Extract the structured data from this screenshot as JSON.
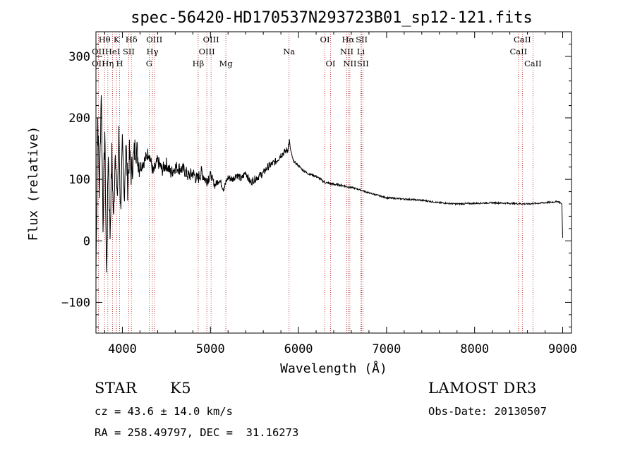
{
  "chart_data": {
    "type": "line",
    "title": "spec-56420-HD170537N293723B01_sp12-121.fits",
    "xlabel": "Wavelength (Å)",
    "ylabel": "Flux (relative)",
    "xlim": [
      3700,
      9100
    ],
    "ylim": [
      -150,
      340
    ],
    "xticks": [
      4000,
      5000,
      6000,
      7000,
      8000,
      9000
    ],
    "xtick_labels": [
      "4000",
      "5000",
      "6000",
      "7000",
      "8000",
      "9000"
    ],
    "yticks": [
      -100,
      0,
      100,
      200,
      300
    ],
    "ytick_labels": [
      "−100",
      "0",
      "100",
      "200",
      "300"
    ],
    "series": [
      {
        "name": "spectrum",
        "x": [
          3700,
          3720,
          3740,
          3760,
          3780,
          3800,
          3820,
          3840,
          3860,
          3880,
          3900,
          3920,
          3940,
          3960,
          3980,
          4000,
          4020,
          4040,
          4060,
          4080,
          4100,
          4150,
          4200,
          4250,
          4300,
          4350,
          4400,
          4450,
          4500,
          4550,
          4600,
          4650,
          4700,
          4750,
          4800,
          4850,
          4900,
          4950,
          5000,
          5050,
          5100,
          5150,
          5200,
          5250,
          5300,
          5350,
          5400,
          5450,
          5500,
          5550,
          5600,
          5650,
          5700,
          5750,
          5800,
          5850,
          5880,
          5895,
          5910,
          5940,
          5980,
          6050,
          6100,
          6200,
          6300,
          6400,
          6500,
          6560,
          6600,
          6700,
          6800,
          6900,
          7000,
          7200,
          7400,
          7600,
          7800,
          8000,
          8200,
          8400,
          8600,
          8800,
          8950,
          8990,
          9000
        ],
        "y": [
          -50,
          200,
          80,
          250,
          30,
          180,
          -60,
          150,
          10,
          140,
          30,
          160,
          60,
          170,
          50,
          150,
          70,
          160,
          90,
          140,
          110,
          155,
          120,
          130,
          145,
          110,
          130,
          115,
          125,
          110,
          120,
          118,
          115,
          105,
          110,
          100,
          112,
          98,
          108,
          90,
          100,
          85,
          103,
          100,
          108,
          100,
          112,
          95,
          100,
          105,
          110,
          120,
          125,
          130,
          140,
          145,
          150,
          162,
          148,
          130,
          125,
          115,
          110,
          105,
          95,
          92,
          90,
          88,
          87,
          83,
          78,
          74,
          70,
          68,
          66,
          62,
          60,
          61,
          62,
          61,
          60,
          62,
          64,
          60,
          5
        ]
      }
    ],
    "spectral_lines": [
      {
        "label": "Hθ",
        "wl": 3798,
        "row": 0
      },
      {
        "label": "K",
        "wl": 3934,
        "row": 0
      },
      {
        "label": "Hδ",
        "wl": 4102,
        "row": 0
      },
      {
        "label": "OIII",
        "wl": 4363,
        "row": 0
      },
      {
        "label": "OIII",
        "wl": 5007,
        "row": 0
      },
      {
        "label": "OI",
        "wl": 6300,
        "row": 0
      },
      {
        "label": "Hα",
        "wl": 6563,
        "row": 0
      },
      {
        "label": "SII",
        "wl": 6717,
        "row": 0
      },
      {
        "label": "CaII",
        "wl": 8542,
        "row": 0
      },
      {
        "label": "OII",
        "wl": 3727,
        "row": 1
      },
      {
        "label": "HeI",
        "wl": 3889,
        "row": 1
      },
      {
        "label": "SII",
        "wl": 4072,
        "row": 1
      },
      {
        "label": "Hγ",
        "wl": 4341,
        "row": 1
      },
      {
        "label": "OIII",
        "wl": 4959,
        "row": 1
      },
      {
        "label": "Na",
        "wl": 5893,
        "row": 1
      },
      {
        "label": "NII",
        "wl": 6548,
        "row": 1
      },
      {
        "label": "Li",
        "wl": 6708,
        "row": 1
      },
      {
        "label": "CaII",
        "wl": 8498,
        "row": 1
      },
      {
        "label": "OII",
        "wl": 3727,
        "row": 2
      },
      {
        "label": "Hη",
        "wl": 3835,
        "row": 2
      },
      {
        "label": "H",
        "wl": 3969,
        "row": 2
      },
      {
        "label": "G",
        "wl": 4304,
        "row": 2
      },
      {
        "label": "Hβ",
        "wl": 4861,
        "row": 2
      },
      {
        "label": "Mg",
        "wl": 5175,
        "row": 2
      },
      {
        "label": "OI",
        "wl": 6364,
        "row": 2
      },
      {
        "label": "NII",
        "wl": 6583,
        "row": 2
      },
      {
        "label": "SII",
        "wl": 6731,
        "row": 2
      },
      {
        "label": "CaII",
        "wl": 8662,
        "row": 2
      }
    ],
    "line_color": "#b22222"
  },
  "footer": {
    "object_class": "STAR",
    "subclass": "K5",
    "survey": "LAMOST DR3",
    "cz": "cz = 43.6 ± 14.0 km/s",
    "obs_date": "Obs-Date: 20130507",
    "coords": "RA = 258.49797, DEC =  31.16273"
  }
}
